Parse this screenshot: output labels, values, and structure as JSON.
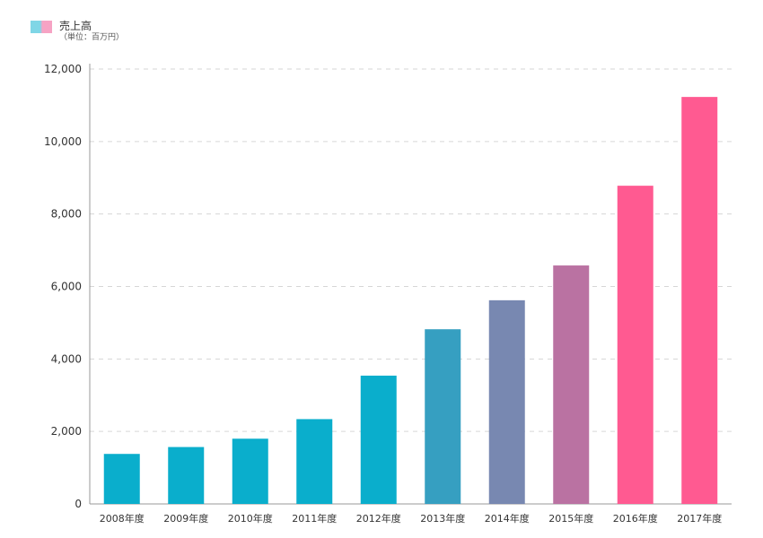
{
  "legend": {
    "label": "売上高",
    "unit": "（単位：百万円）"
  },
  "colors": {
    "start": "#0aaecc",
    "end": "#ff5a91",
    "grid": "#d6d6d6",
    "axis": "#999999"
  },
  "chart_data": {
    "type": "bar",
    "title": "",
    "xlabel": "",
    "ylabel": "",
    "categories": [
      "2008年度",
      "2009年度",
      "2010年度",
      "2011年度",
      "2012年度",
      "2013年度",
      "2014年度",
      "2015年度",
      "2016年度",
      "2017年度"
    ],
    "series": [
      {
        "name": "売上高",
        "values": [
          1380,
          1570,
          1800,
          2340,
          3540,
          4820,
          5620,
          6580,
          8780,
          11230
        ]
      }
    ],
    "ylim": [
      0,
      12000
    ],
    "yticks": [
      0,
      2000,
      4000,
      6000,
      8000,
      10000,
      12000
    ],
    "ytick_labels": [
      "0",
      "2,000",
      "4,000",
      "6,000",
      "8,000",
      "10,000",
      "12,000"
    ],
    "grid": true,
    "legend_position": "top-left"
  }
}
